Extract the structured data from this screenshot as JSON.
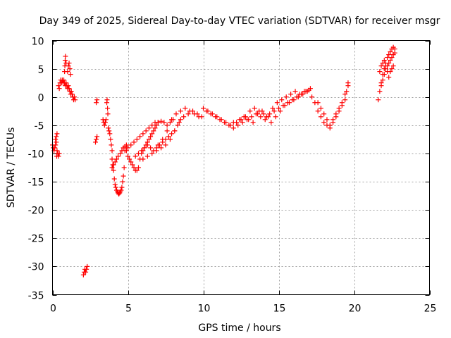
{
  "chart_data": {
    "type": "scatter",
    "title": "Day 349 of 2025, Sidereal Day-to-day VTEC variation (SDTVAR) for receiver msgr",
    "xlabel": "GPS time / hours",
    "ylabel": "SDTVAR / TECUs",
    "xlim": [
      0,
      25
    ],
    "ylim": [
      -35,
      10
    ],
    "xticks": [
      0,
      5,
      10,
      15,
      20,
      25
    ],
    "yticks": [
      10,
      5,
      0,
      -5,
      -10,
      -15,
      -20,
      -25,
      -30,
      -35
    ],
    "grid": true,
    "marker": "+",
    "color": "#ff0000",
    "series": [
      {
        "x": [
          0.0,
          0.05,
          0.1,
          0.15,
          0.2,
          0.25,
          0.3,
          0.35,
          0.4,
          0.45,
          0.2,
          0.25,
          0.3,
          0.28,
          0.4,
          0.45,
          0.5,
          0.55,
          0.6,
          0.65,
          0.7,
          0.75,
          0.8,
          0.85,
          0.9,
          0.95,
          1.0,
          1.05,
          1.1,
          1.15,
          1.2,
          1.25,
          1.3,
          1.35,
          1.4,
          1.45,
          1.5,
          0.8,
          0.82,
          0.84,
          0.86,
          0.9,
          1.0,
          1.05,
          1.1,
          1.15,
          1.2,
          2.05,
          2.1,
          2.15,
          2.2,
          2.25,
          2.3,
          2.85,
          2.9,
          2.95,
          2.9,
          2.95,
          3.35,
          3.4,
          3.45,
          3.5,
          3.55,
          3.6,
          3.62,
          3.65,
          3.67,
          3.7,
          3.75,
          3.8,
          3.85,
          3.9,
          3.95,
          3.95,
          4.0,
          4.05,
          4.1,
          4.15,
          4.2,
          4.25,
          4.3,
          4.35,
          4.4,
          4.45,
          4.5,
          4.55,
          4.6,
          4.65,
          4.7,
          4.75,
          3.95,
          4.05,
          4.15,
          4.25,
          4.35,
          4.5,
          4.6,
          4.7,
          4.8,
          4.9,
          4.9,
          5.0,
          5.1,
          5.2,
          5.3,
          5.4,
          5.5,
          5.6,
          5.7,
          5.8,
          5.9,
          6.0,
          6.1,
          6.2,
          6.3,
          6.4,
          6.5,
          6.6,
          6.7,
          6.8,
          6.9,
          7.0,
          4.8,
          5.0,
          5.2,
          5.4,
          5.6,
          5.8,
          6.0,
          6.2,
          6.4,
          6.6,
          6.8,
          7.0,
          7.2,
          7.4,
          7.6,
          7.8,
          8.0,
          5.5,
          5.7,
          5.9,
          6.1,
          6.3,
          6.5,
          6.7,
          6.9,
          7.1,
          7.3,
          7.5,
          7.7,
          7.9,
          8.1,
          8.3,
          8.5,
          6.0,
          6.3,
          6.6,
          6.9,
          7.2,
          7.5,
          7.8,
          8.1,
          8.4,
          8.7,
          9.0,
          9.3,
          9.6,
          9.9,
          10.2,
          10.5,
          10.8,
          11.1,
          11.4,
          11.7,
          12.0,
          7.0,
          7.3,
          7.6,
          7.9,
          8.2,
          8.5,
          8.8,
          9.1,
          9.4,
          9.7,
          10.0,
          10.3,
          10.6,
          10.9,
          11.2,
          11.5,
          11.8,
          12.0,
          12.3,
          12.6,
          12.9,
          13.2,
          13.5,
          13.8,
          14.1,
          14.4,
          14.7,
          15.0,
          15.3,
          15.6,
          15.9,
          16.2,
          16.5,
          16.8,
          17.1,
          12.2,
          12.5,
          12.8,
          13.1,
          13.4,
          13.7,
          14.0,
          14.3,
          14.6,
          14.9,
          15.2,
          15.5,
          15.8,
          16.1,
          16.4,
          16.7,
          17.0,
          12.4,
          12.7,
          13.0,
          13.3,
          13.6,
          13.9,
          14.2,
          14.5,
          14.8,
          15.1,
          15.4,
          15.7,
          16.0,
          16.3,
          16.6,
          16.9,
          17.2,
          17.4,
          17.6,
          17.8,
          18.0,
          18.2,
          18.4,
          18.6,
          18.8,
          19.0,
          19.2,
          19.4,
          19.6,
          17.6,
          17.8,
          18.0,
          18.2,
          18.4,
          18.6,
          18.8,
          19.0,
          19.2,
          19.4,
          19.5,
          19.6,
          21.6,
          21.7,
          21.8,
          21.9,
          22.0,
          22.1,
          22.2,
          22.3,
          22.4,
          22.5,
          22.6,
          22.7,
          21.8,
          21.9,
          22.0,
          22.1,
          22.2,
          22.3,
          22.4,
          22.5,
          22.6,
          22.7,
          21.7,
          21.8,
          21.9,
          22.0,
          22.1,
          22.2,
          22.3,
          22.4,
          22.5,
          22.6
        ],
        "y": [
          -8.5,
          -9.0,
          -9.5,
          -9.0,
          -8.5,
          -8.0,
          -9.5,
          -10.0,
          -10.5,
          -10.0,
          -7.5,
          -7.0,
          -6.5,
          -10.5,
          2.0,
          1.5,
          2.5,
          3.0,
          2.5,
          3.0,
          2.5,
          3.0,
          2.5,
          2.0,
          2.5,
          2.0,
          1.5,
          2.0,
          1.5,
          1.0,
          0.5,
          1.0,
          0.5,
          0.0,
          -0.5,
          0.0,
          -0.5,
          4.5,
          5.5,
          6.5,
          7.2,
          6.0,
          4.5,
          5.5,
          6.0,
          5.0,
          4.0,
          -31.5,
          -31.0,
          -30.5,
          -31.0,
          -30.5,
          -30.0,
          -8.0,
          -7.5,
          -7.0,
          -1.0,
          -0.5,
          -4.0,
          -4.5,
          -5.0,
          -4.5,
          -4.0,
          -1.0,
          -0.5,
          -2.0,
          -3.0,
          -5.5,
          -6.0,
          -6.5,
          -7.5,
          -8.5,
          -9.5,
          -11.0,
          -12.0,
          -13.0,
          -14.5,
          -15.5,
          -16.0,
          -16.5,
          -16.8,
          -17.0,
          -17.2,
          -17.0,
          -16.8,
          -16.5,
          -16.0,
          -15.0,
          -14.0,
          -12.5,
          -12.5,
          -12.0,
          -11.5,
          -11.0,
          -10.5,
          -10.0,
          -9.5,
          -9.0,
          -8.8,
          -8.5,
          -9.5,
          -10.5,
          -11.0,
          -11.5,
          -12.0,
          -12.5,
          -13.0,
          -13.0,
          -12.5,
          -11.0,
          -10.0,
          -9.5,
          -9.0,
          -8.5,
          -8.0,
          -7.5,
          -7.0,
          -6.5,
          -6.0,
          -5.5,
          -5.0,
          -4.5,
          -9.5,
          -9.0,
          -8.5,
          -8.0,
          -7.5,
          -7.0,
          -6.5,
          -6.0,
          -5.5,
          -5.0,
          -4.5,
          -4.5,
          -4.3,
          -4.5,
          -5.0,
          -4.5,
          -4.0,
          -10.5,
          -10.0,
          -9.5,
          -9.0,
          -8.5,
          -9.0,
          -9.5,
          -9.0,
          -8.5,
          -8.0,
          -7.5,
          -7.0,
          -6.5,
          -6.0,
          -5.0,
          -4.0,
          -11.0,
          -10.5,
          -10.0,
          -9.5,
          -9.0,
          -8.5,
          -7.5,
          -6.0,
          -4.5,
          -3.5,
          -3.0,
          -2.5,
          -3.0,
          -3.5,
          -2.5,
          -3.0,
          -3.5,
          -4.0,
          -4.5,
          -5.0,
          -4.5,
          -8.5,
          -7.5,
          -6.0,
          -4.0,
          -3.0,
          -2.5,
          -2.0,
          -2.5,
          -3.0,
          -3.5,
          -2.0,
          -2.5,
          -3.0,
          -3.5,
          -4.0,
          -4.5,
          -5.0,
          -5.5,
          -5.0,
          -4.5,
          -4.0,
          -3.5,
          -3.0,
          -3.5,
          -4.0,
          -3.0,
          -2.5,
          -2.0,
          -1.5,
          -1.0,
          -0.5,
          0.0,
          0.5,
          1.0,
          1.5,
          -4.5,
          -4.0,
          -3.5,
          -2.5,
          -2.0,
          -2.5,
          -3.0,
          -3.5,
          -2.0,
          -1.0,
          -0.5,
          0.0,
          0.5,
          1.0,
          0.5,
          1.0,
          1.2,
          -4.0,
          -3.5,
          -4.0,
          -4.5,
          -3.0,
          -2.5,
          -3.5,
          -4.5,
          -3.5,
          -2.5,
          -1.5,
          -1.0,
          -0.5,
          0.0,
          0.5,
          1.0,
          0.0,
          -1.0,
          -2.5,
          -3.5,
          -4.5,
          -5.0,
          -5.5,
          -4.0,
          -3.0,
          -2.0,
          -1.0,
          0.5,
          2.0,
          -1.0,
          -2.0,
          -3.0,
          -4.0,
          -5.0,
          -4.5,
          -3.5,
          -2.5,
          -1.5,
          -0.5,
          1.0,
          2.5,
          -0.5,
          1.0,
          2.5,
          4.0,
          5.0,
          6.0,
          7.0,
          7.5,
          8.0,
          8.5,
          8.8,
          8.5,
          2.0,
          3.0,
          4.0,
          5.0,
          5.5,
          6.0,
          6.5,
          7.0,
          7.5,
          7.8,
          4.5,
          5.5,
          6.0,
          6.5,
          5.5,
          4.5,
          3.5,
          4.5,
          5.0,
          5.5
        ]
      }
    ]
  }
}
